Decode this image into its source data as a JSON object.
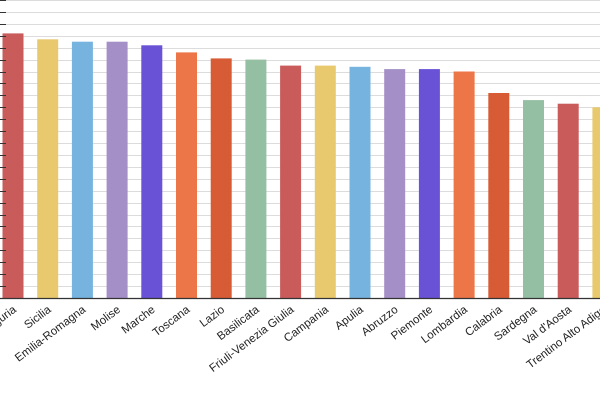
{
  "chart_data": {
    "type": "bar",
    "title": "",
    "xlabel": "",
    "ylabel": "",
    "ylim": [
      0,
      12.5
    ],
    "grid": true,
    "categories": [
      "Liguria",
      "Sicilia",
      "Emilia-Romagna",
      "Molise",
      "Marche",
      "Toscana",
      "Lazio",
      "Basilicata",
      "Friuli-Venezia Giulia",
      "Campania",
      "Apulia",
      "Abruzzo",
      "Piemonte",
      "Lombardia",
      "Calabria",
      "Sardegna",
      "Val d'Aosta",
      "Trentino Alto Adige"
    ],
    "values": [
      11.1,
      10.85,
      10.75,
      10.75,
      10.6,
      10.3,
      10.05,
      10.0,
      9.75,
      9.75,
      9.7,
      9.6,
      9.6,
      9.5,
      8.6,
      8.3,
      8.15,
      8.0
    ],
    "colors": [
      "#C95B5B",
      "#E8C96E",
      "#76B3DE",
      "#A48FC6",
      "#6A52D6",
      "#EC7648",
      "#D75C36",
      "#94BFA3",
      "#C95B5B",
      "#E8C96E",
      "#76B3DE",
      "#A48FC6",
      "#6A52D6",
      "#EC7648",
      "#D75C36",
      "#94BFA3",
      "#C95B5B",
      "#E8C96E"
    ]
  }
}
